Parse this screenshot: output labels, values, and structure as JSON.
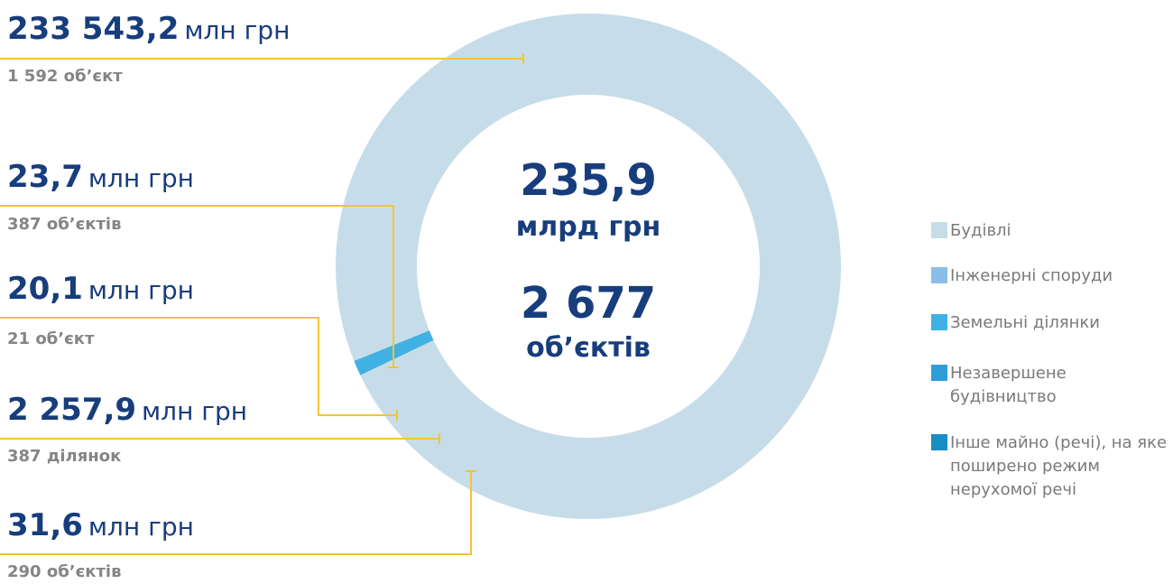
{
  "chart_data": {
    "type": "donut",
    "categories": [
      "Будівлі",
      "Інженерні споруди",
      "Земельні ділянки",
      "Незавершене будівництво",
      "Інше майно (речі), на яке поширено режим нерухомої речі"
    ],
    "values": [
      233543.2,
      31.6,
      2257.9,
      20.1,
      23.7
    ],
    "value_labels": [
      "233 543,2",
      "31,6",
      "2 257,9",
      "20,1",
      "23,7"
    ],
    "unit": "млн грн",
    "counts": [
      "1 592 об’єкт",
      "290 об’єктів",
      "387 ділянок",
      "21 об’єкт",
      "387 об’єктів"
    ],
    "colors": [
      "#c6dde9",
      "#87bfe8",
      "#41b1e3",
      "#2f9dd8",
      "#1a8dc5"
    ],
    "center": {
      "total": "235,9",
      "total_unit": "млрд грн",
      "count": "2 677",
      "count_unit": "об’єктів"
    }
  }
}
